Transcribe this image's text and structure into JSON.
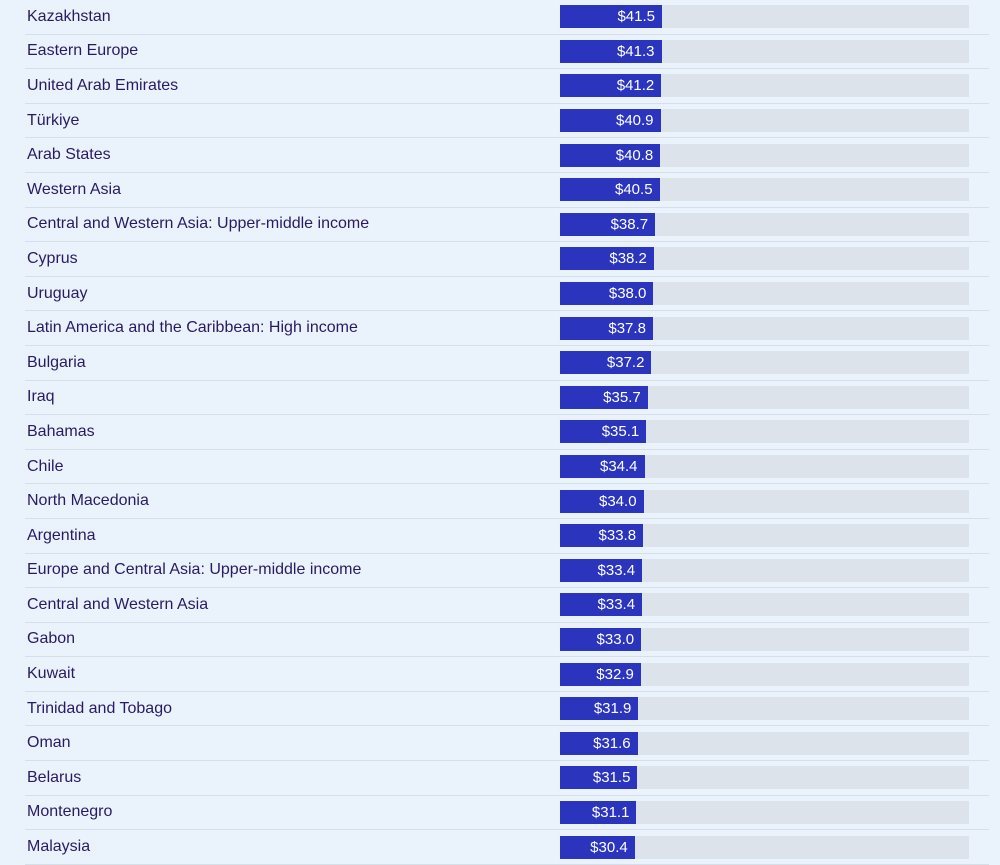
{
  "page": {
    "background_color": "#eaf2fb",
    "row_divider_color": "#d6dee8",
    "label_text_color": "#2a1a63",
    "bar_color": "#2a34bd",
    "bar_track_color": "#dce3ea",
    "bar_value_text_color": "#ffffff"
  },
  "chart_data": {
    "type": "bar",
    "orientation": "horizontal",
    "value_prefix": "$",
    "grid": false,
    "legend": false,
    "xlim": [
      0,
      166.4
    ],
    "categories": [
      "Kazakhstan",
      "Eastern Europe",
      "United Arab Emirates",
      "Türkiye",
      "Arab States",
      "Western Asia",
      "Central and Western Asia: Upper-middle income",
      "Cyprus",
      "Uruguay",
      "Latin America and the Caribbean: High income",
      "Bulgaria",
      "Iraq",
      "Bahamas",
      "Chile",
      "North Macedonia",
      "Argentina",
      "Europe and Central Asia: Upper-middle income",
      "Central and Western Asia",
      "Gabon",
      "Kuwait",
      "Trinidad and Tobago",
      "Oman",
      "Belarus",
      "Montenegro",
      "Malaysia"
    ],
    "values": [
      41.5,
      41.3,
      41.2,
      40.9,
      40.8,
      40.5,
      38.7,
      38.2,
      38.0,
      37.8,
      37.2,
      35.7,
      35.1,
      34.4,
      34.0,
      33.8,
      33.4,
      33.4,
      33.0,
      32.9,
      31.9,
      31.6,
      31.5,
      31.1,
      30.4
    ],
    "value_labels": [
      "$41.5",
      "$41.3",
      "$41.2",
      "$40.9",
      "$40.8",
      "$40.5",
      "$38.7",
      "$38.2",
      "$38.0",
      "$37.8",
      "$37.2",
      "$35.7",
      "$35.1",
      "$34.4",
      "$34.0",
      "$33.8",
      "$33.4",
      "$33.4",
      "$33.0",
      "$32.9",
      "$31.9",
      "$31.6",
      "$31.5",
      "$31.1",
      "$30.4"
    ]
  }
}
